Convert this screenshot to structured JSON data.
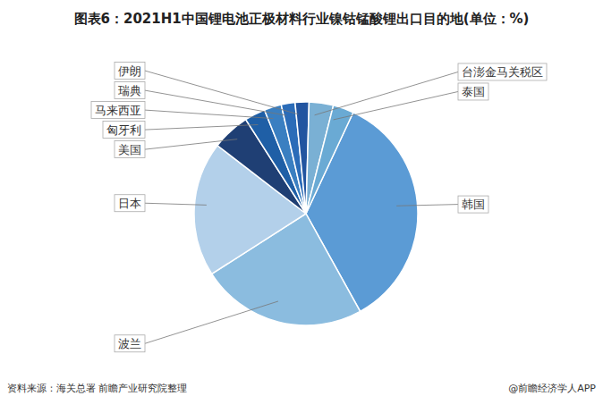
{
  "chart_data": {
    "type": "pie",
    "title": "图表6：2021H1中国锂电池正极材料行业镍钴锰酸锂出口目的地(单位：%)",
    "categories": [
      "韩国",
      "波兰",
      "日本",
      "美国",
      "匈牙利",
      "马来西亚",
      "瑞典",
      "伊朗",
      "台澎金马关税区",
      "泰国"
    ],
    "values": [
      35.0,
      24.0,
      19.5,
      5.5,
      3.0,
      2.5,
      2.0,
      2.0,
      3.5,
      3.0
    ],
    "colors": [
      "#5b9bd5",
      "#8bbcdf",
      "#b3d0ea",
      "#1f3f74",
      "#1f5fa6",
      "#3a7fc1",
      "#2b6cb8",
      "#2255a0",
      "#7ab0d4",
      "#6aaad4"
    ],
    "annotations": [
      "资料来源：海关总署 前瞻产业研究院整理",
      "@前瞻经济学人APP"
    ]
  }
}
